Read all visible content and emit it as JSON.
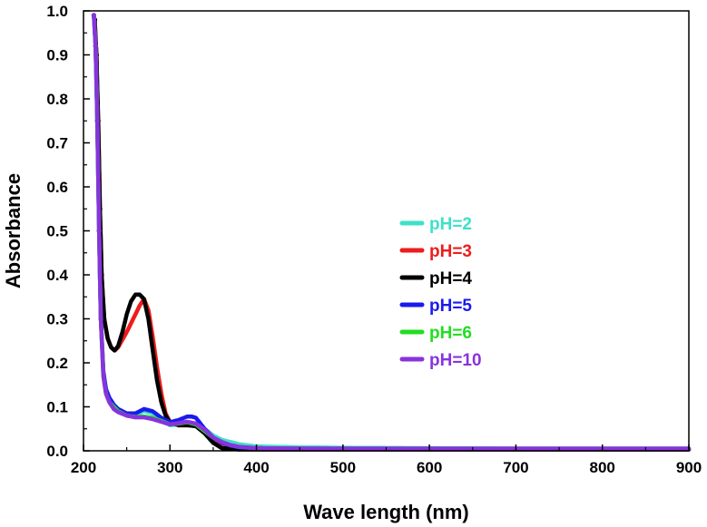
{
  "chart_data": {
    "type": "line",
    "title": "",
    "xlabel": "Wave length (nm)",
    "ylabel": "Absorbance",
    "xlim": [
      200,
      900
    ],
    "ylim": [
      0.0,
      1.0
    ],
    "x_ticks": [
      200,
      300,
      400,
      500,
      600,
      700,
      800,
      900
    ],
    "y_ticks": [
      "0.0",
      "0.1",
      "0.2",
      "0.3",
      "0.4",
      "0.5",
      "0.6",
      "0.7",
      "0.8",
      "0.9",
      "1.0"
    ],
    "grid": false,
    "legend_position": "center-right",
    "series": [
      {
        "name": "pH=2",
        "color": "#40e0c8",
        "x": [
          212,
          214,
          216,
          218,
          220,
          223,
          226,
          230,
          235,
          240,
          250,
          260,
          270,
          280,
          290,
          300,
          310,
          320,
          330,
          340,
          350,
          360,
          370,
          380,
          400,
          450,
          500,
          600,
          700,
          800,
          900
        ],
        "y": [
          0.99,
          0.92,
          0.75,
          0.5,
          0.3,
          0.18,
          0.14,
          0.12,
          0.105,
          0.095,
          0.085,
          0.082,
          0.09,
          0.085,
          0.07,
          0.058,
          0.06,
          0.062,
          0.06,
          0.05,
          0.035,
          0.025,
          0.02,
          0.015,
          0.01,
          0.008,
          0.007,
          0.006,
          0.005,
          0.005,
          0.005
        ]
      },
      {
        "name": "pH=3",
        "color": "#ee1c1c",
        "x": [
          213,
          215,
          217,
          219,
          221,
          224,
          228,
          232,
          236,
          240,
          250,
          260,
          265,
          270,
          275,
          280,
          285,
          290,
          295,
          300,
          310,
          320,
          330,
          340,
          350,
          360,
          370,
          380,
          400,
          450,
          500,
          600,
          700,
          800,
          900
        ],
        "y": [
          0.98,
          0.9,
          0.75,
          0.55,
          0.4,
          0.3,
          0.255,
          0.235,
          0.228,
          0.235,
          0.27,
          0.31,
          0.33,
          0.345,
          0.32,
          0.26,
          0.19,
          0.13,
          0.085,
          0.065,
          0.058,
          0.058,
          0.057,
          0.045,
          0.02,
          0.008,
          0.004,
          0.003,
          0.003,
          0.003,
          0.003,
          0.003,
          0.003,
          0.003,
          0.003
        ]
      },
      {
        "name": "pH=4",
        "color": "#000000",
        "x": [
          213,
          215,
          217,
          219,
          221,
          224,
          228,
          232,
          236,
          240,
          245,
          250,
          255,
          260,
          265,
          270,
          275,
          280,
          285,
          290,
          295,
          300,
          310,
          320,
          330,
          340,
          350,
          360,
          380,
          400,
          450,
          500,
          600,
          700,
          800,
          900
        ],
        "y": [
          0.98,
          0.9,
          0.75,
          0.55,
          0.4,
          0.3,
          0.255,
          0.235,
          0.228,
          0.238,
          0.27,
          0.31,
          0.34,
          0.355,
          0.355,
          0.345,
          0.3,
          0.23,
          0.16,
          0.11,
          0.08,
          0.065,
          0.058,
          0.058,
          0.056,
          0.04,
          0.018,
          0.006,
          0.003,
          0.003,
          0.003,
          0.003,
          0.003,
          0.003,
          0.003,
          0.003
        ]
      },
      {
        "name": "pH=5",
        "color": "#1a1aee",
        "x": [
          212,
          214,
          216,
          218,
          220,
          223,
          226,
          230,
          235,
          240,
          250,
          260,
          270,
          280,
          290,
          300,
          310,
          320,
          325,
          330,
          340,
          350,
          360,
          370,
          380,
          400,
          450,
          500,
          600,
          700,
          800,
          900
        ],
        "y": [
          0.99,
          0.92,
          0.75,
          0.5,
          0.3,
          0.18,
          0.14,
          0.12,
          0.105,
          0.095,
          0.085,
          0.085,
          0.095,
          0.09,
          0.075,
          0.065,
          0.07,
          0.078,
          0.078,
          0.075,
          0.05,
          0.03,
          0.018,
          0.012,
          0.008,
          0.006,
          0.005,
          0.005,
          0.005,
          0.005,
          0.005,
          0.005
        ]
      },
      {
        "name": "pH=6",
        "color": "#22dd22",
        "x": [
          212,
          214,
          216,
          218,
          220,
          223,
          226,
          230,
          235,
          240,
          250,
          260,
          270,
          280,
          290,
          300,
          310,
          320,
          330,
          340,
          350,
          360,
          370,
          380,
          400,
          450,
          500,
          600,
          700,
          800,
          900
        ],
        "y": [
          0.99,
          0.92,
          0.75,
          0.5,
          0.3,
          0.17,
          0.13,
          0.11,
          0.1,
          0.09,
          0.08,
          0.077,
          0.078,
          0.075,
          0.068,
          0.06,
          0.062,
          0.065,
          0.06,
          0.045,
          0.03,
          0.02,
          0.013,
          0.009,
          0.006,
          0.005,
          0.005,
          0.005,
          0.005,
          0.005,
          0.005
        ]
      },
      {
        "name": "pH=10",
        "color": "#8833dd",
        "x": [
          212,
          214,
          216,
          218,
          220,
          223,
          226,
          230,
          235,
          240,
          250,
          260,
          270,
          280,
          290,
          300,
          310,
          320,
          330,
          340,
          350,
          360,
          370,
          380,
          400,
          450,
          500,
          600,
          700,
          800,
          900
        ],
        "y": [
          0.99,
          0.92,
          0.75,
          0.5,
          0.3,
          0.17,
          0.13,
          0.11,
          0.095,
          0.088,
          0.08,
          0.076,
          0.076,
          0.072,
          0.066,
          0.06,
          0.063,
          0.066,
          0.062,
          0.048,
          0.03,
          0.02,
          0.013,
          0.009,
          0.006,
          0.005,
          0.005,
          0.005,
          0.005,
          0.005,
          0.005
        ]
      }
    ]
  }
}
